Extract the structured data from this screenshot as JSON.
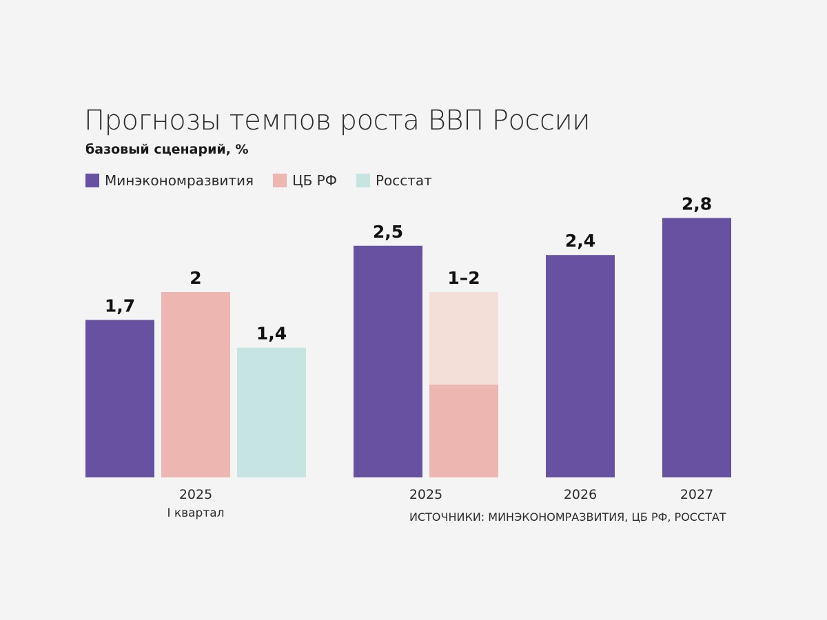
{
  "chart_data": {
    "type": "bar",
    "title": "Прогнозы темпов роста ВВП России",
    "subtitle": "базовый сценарий, %",
    "source": "ИСТОЧНИКИ: МИНЭКОНОМРАЗВИТИЯ, ЦБ РФ, РОССТАТ",
    "legend": [
      {
        "name": "Минэкономразвития",
        "color": "#6652a0"
      },
      {
        "name": "ЦБ РФ",
        "color": "#eeb6b1"
      },
      {
        "name": "Росстат",
        "color": "#c5e4e2"
      }
    ],
    "ylim": [
      0,
      2.8
    ],
    "range_colors": {
      "base": "#eeb6b1",
      "upper": "#f3dfd8"
    },
    "groups": [
      {
        "label": "2025",
        "sublabel": "I квартал",
        "bars": [
          {
            "series": "Минэкономразвития",
            "value": 1.7,
            "label": "1,7"
          },
          {
            "series": "ЦБ РФ",
            "value": 2,
            "label": "2"
          },
          {
            "series": "Росстат",
            "value": 1.4,
            "label": "1,4"
          }
        ]
      },
      {
        "label": "2025",
        "sublabel": "",
        "bars": [
          {
            "series": "Минэкономразвития",
            "value": 2.5,
            "label": "2,5"
          },
          {
            "series": "ЦБ РФ",
            "value": [
              1,
              2
            ],
            "label": "1–2"
          }
        ]
      },
      {
        "label": "2026",
        "sublabel": "",
        "bars": [
          {
            "series": "Минэкономразвития",
            "value": 2.4,
            "label": "2,4"
          }
        ]
      },
      {
        "label": "2027",
        "sublabel": "",
        "bars": [
          {
            "series": "Минэкономразвития",
            "value": 2.8,
            "label": "2,8"
          }
        ]
      }
    ]
  }
}
